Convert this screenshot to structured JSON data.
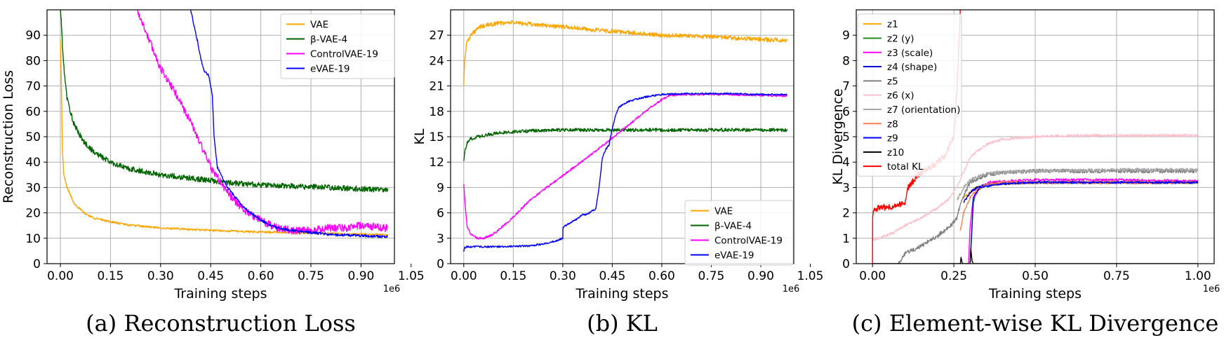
{
  "chart_data": [
    {
      "type": "line",
      "caption": "(a) Reconstruction Loss",
      "xlabel": "Training steps",
      "ylabel": "Reconstruction Loss",
      "x_offset_label": "1e6",
      "xlim": [
        -0.04,
        1.0
      ],
      "ylim": [
        0,
        100
      ],
      "xticks": [
        0.0,
        0.15,
        0.3,
        0.45,
        0.6,
        0.75,
        0.9,
        1.05
      ],
      "xtick_labels": [
        "0.00",
        "0.15",
        "0.30",
        "0.45",
        "0.60",
        "0.75",
        "0.90",
        "1.05"
      ],
      "yticks": [
        0,
        10,
        20,
        30,
        40,
        50,
        60,
        70,
        80,
        90
      ],
      "ytick_labels": [
        "0",
        "10",
        "20",
        "30",
        "40",
        "50",
        "60",
        "70",
        "80",
        "90"
      ],
      "grid": true,
      "legend_position": "top-right",
      "series": [
        {
          "name": "VAE",
          "color": "#ffa500",
          "noise": 0.4,
          "x": [
            0,
            0.003,
            0.006,
            0.01,
            0.02,
            0.04,
            0.07,
            0.1,
            0.15,
            0.2,
            0.3,
            0.4,
            0.5,
            0.6,
            0.7,
            0.8,
            0.9,
            0.98
          ],
          "y": [
            88,
            70,
            45,
            35,
            30,
            24,
            20,
            18,
            16.5,
            15.3,
            14,
            13.4,
            12.9,
            12.5,
            12.2,
            11.9,
            11.6,
            11.4
          ]
        },
        {
          "name": "β-VAE-4",
          "label": "β-VAE-4",
          "color": "#006400",
          "noise": 1.1,
          "x": [
            0,
            0.003,
            0.006,
            0.01,
            0.02,
            0.04,
            0.07,
            0.1,
            0.15,
            0.2,
            0.3,
            0.4,
            0.5,
            0.6,
            0.7,
            0.8,
            0.9,
            0.98
          ],
          "y": [
            100,
            95,
            86,
            78,
            65,
            55,
            48,
            44,
            40,
            37.5,
            35,
            33.5,
            32,
            31,
            30.5,
            30,
            29.5,
            29
          ]
        },
        {
          "name": "ControlVAE-19",
          "color": "#ff00ff",
          "noise": 1.5,
          "x": [
            0.23,
            0.26,
            0.3,
            0.35,
            0.4,
            0.45,
            0.5,
            0.55,
            0.6,
            0.65,
            0.7,
            0.75,
            0.8,
            0.85,
            0.9,
            0.95,
            0.98
          ],
          "y": [
            100,
            90,
            77,
            66,
            53,
            38,
            28,
            21,
            17,
            14,
            13,
            13,
            14,
            14,
            15,
            14.5,
            14
          ]
        },
        {
          "name": "eVAE-19",
          "color": "#0000ff",
          "noise": 0.5,
          "x": [
            0.39,
            0.41,
            0.42,
            0.43,
            0.445,
            0.455,
            0.46,
            0.47,
            0.5,
            0.55,
            0.6,
            0.65,
            0.7,
            0.75,
            0.8,
            0.9,
            0.98
          ],
          "y": [
            100,
            88,
            81,
            76,
            74,
            66,
            50,
            38,
            30,
            22,
            17,
            14,
            13,
            12.3,
            11.5,
            11,
            10.6
          ]
        }
      ]
    },
    {
      "type": "line",
      "caption": "(b) KL",
      "xlabel": "Training steps",
      "ylabel": "KL",
      "x_offset_label": "1e6",
      "xlim": [
        -0.04,
        1.0
      ],
      "ylim": [
        0,
        30
      ],
      "xticks": [
        0.0,
        0.15,
        0.3,
        0.45,
        0.6,
        0.75,
        0.9,
        1.05
      ],
      "xtick_labels": [
        "0.00",
        "0.15",
        "0.30",
        "0.45",
        "0.60",
        "0.75",
        "0.90",
        "1.05"
      ],
      "yticks": [
        0,
        3,
        6,
        9,
        12,
        15,
        18,
        21,
        24,
        27
      ],
      "ytick_labels": [
        "0",
        "3",
        "6",
        "9",
        "12",
        "15",
        "18",
        "21",
        "24",
        "27"
      ],
      "grid": true,
      "legend_position": "bottom-right",
      "series": [
        {
          "name": "VAE",
          "color": "#ffa500",
          "noise": 0.25,
          "x": [
            0,
            0.003,
            0.008,
            0.02,
            0.05,
            0.1,
            0.15,
            0.2,
            0.3,
            0.4,
            0.5,
            0.6,
            0.7,
            0.8,
            0.9,
            0.98
          ],
          "y": [
            21.3,
            24,
            26,
            27,
            28,
            28.4,
            28.5,
            28.3,
            28,
            27.6,
            27.3,
            27,
            26.9,
            26.7,
            26.5,
            26.4
          ]
        },
        {
          "name": "β-VAE-4",
          "label": "β-VAE-4",
          "color": "#006400",
          "noise": 0.2,
          "x": [
            0,
            0.003,
            0.01,
            0.02,
            0.04,
            0.08,
            0.12,
            0.2,
            0.3,
            0.45,
            0.6,
            0.75,
            0.9,
            0.98
          ],
          "y": [
            12.3,
            13.2,
            14.2,
            14.7,
            15,
            15.3,
            15.5,
            15.7,
            15.8,
            15.8,
            15.8,
            15.8,
            15.8,
            15.8
          ]
        },
        {
          "name": "ControlVAE-19",
          "color": "#ff00ff",
          "noise": 0.12,
          "x": [
            0,
            0.004,
            0.01,
            0.02,
            0.04,
            0.06,
            0.08,
            0.1,
            0.15,
            0.2,
            0.3,
            0.4,
            0.5,
            0.55,
            0.6,
            0.62,
            0.65,
            0.7,
            0.8,
            0.9,
            0.98
          ],
          "y": [
            9.5,
            7,
            4.5,
            3.5,
            3.0,
            3.0,
            3.3,
            3.8,
            5.5,
            7.5,
            10.4,
            13.3,
            16.4,
            18,
            19.4,
            19.8,
            20,
            20,
            20,
            19.9,
            19.8
          ]
        },
        {
          "name": "eVAE-19",
          "color": "#0000ff",
          "noise": 0.1,
          "x": [
            0,
            0.003,
            0.01,
            0.05,
            0.1,
            0.2,
            0.25,
            0.28,
            0.3,
            0.3005,
            0.32,
            0.34,
            0.36,
            0.37,
            0.38,
            0.4,
            0.41,
            0.42,
            0.43,
            0.44,
            0.45,
            0.46,
            0.47,
            0.5,
            0.55,
            0.6,
            0.7,
            0.8,
            0.9,
            0.98
          ],
          "y": [
            1.5,
            1.9,
            2.0,
            2.0,
            2.0,
            2.1,
            2.4,
            2.7,
            3.0,
            4.3,
            4.8,
            5.2,
            5.8,
            5.8,
            6.0,
            6.5,
            9,
            12.5,
            13.5,
            14,
            16,
            17.5,
            18.5,
            19.2,
            19.7,
            20,
            20.1,
            20.1,
            20,
            20
          ]
        }
      ]
    },
    {
      "type": "line",
      "caption": "(c) Element-wise KL Divergence",
      "xlabel": "Training steps",
      "ylabel": "KL Divergence",
      "x_offset_label": "1e6",
      "xlim": [
        -0.05,
        1.05
      ],
      "ylim": [
        0,
        10
      ],
      "xticks": [
        0.0,
        0.25,
        0.5,
        0.75,
        1.0
      ],
      "xtick_labels": [
        "0.00",
        "0.25",
        "0.50",
        "0.75",
        "1.00"
      ],
      "yticks": [
        0,
        1,
        2,
        3,
        4,
        5,
        6,
        7,
        8,
        9
      ],
      "ytick_labels": [
        "0",
        "1",
        "2",
        "3",
        "4",
        "5",
        "6",
        "7",
        "8",
        "9"
      ],
      "grid": true,
      "legend_position": "top-left",
      "series": [
        {
          "name": "z1",
          "color": "#ffa500",
          "noise": 0.05,
          "x": [
            0.28,
            0.3,
            0.32,
            0.35,
            0.4,
            0.5,
            0.6,
            0.75,
            0.9,
            1.0
          ],
          "y": [
            2.6,
            2.8,
            3.0,
            3.1,
            3.15,
            3.2,
            3.2,
            3.2,
            3.2,
            3.2
          ]
        },
        {
          "name": "z2 (y)",
          "color": "#228b22",
          "noise": 0.04,
          "x": [
            0.3,
            0.31,
            0.32,
            0.35,
            0.4,
            0.5,
            0.75,
            1.0
          ],
          "y": [
            0.0,
            2.4,
            2.9,
            3.1,
            3.2,
            3.2,
            3.2,
            3.2
          ]
        },
        {
          "name": "z3 (scale)",
          "color": "#ff00ff",
          "noise": 0.05,
          "x": [
            0.295,
            0.3,
            0.31,
            0.33,
            0.36,
            0.4,
            0.5,
            0.75,
            1.0
          ],
          "y": [
            0.0,
            1.5,
            2.6,
            3.0,
            3.2,
            3.25,
            3.3,
            3.3,
            3.25
          ]
        },
        {
          "name": "z4 (shape)",
          "color": "#0000cd",
          "noise": 0.05,
          "x": [
            0.28,
            0.3,
            0.32,
            0.35,
            0.4,
            0.5,
            0.75,
            1.0
          ],
          "y": [
            2.4,
            2.8,
            3.0,
            3.1,
            3.15,
            3.2,
            3.2,
            3.2
          ]
        },
        {
          "name": "z5",
          "color": "#808080",
          "noise": 0.08,
          "x": [
            0.08,
            0.1,
            0.15,
            0.2,
            0.24,
            0.26,
            0.27,
            0.3,
            0.35,
            0.4,
            0.5,
            0.6,
            0.75,
            0.9,
            1.0
          ],
          "y": [
            0.0,
            0.4,
            0.7,
            1.1,
            1.5,
            1.8,
            2.4,
            3.2,
            3.5,
            3.6,
            3.65,
            3.65,
            3.65,
            3.65,
            3.65
          ]
        },
        {
          "name": "z6 (x)",
          "color": "#ffc0cb",
          "noise": 0.05,
          "x": [
            0,
            0.02,
            0.06,
            0.1,
            0.15,
            0.2,
            0.24,
            0.27,
            0.3,
            0.35,
            0.4,
            0.5,
            0.6,
            0.75,
            0.9,
            1.0
          ],
          "y": [
            0.95,
            1.0,
            1.2,
            1.5,
            1.8,
            2.2,
            2.6,
            3.3,
            4.2,
            4.7,
            4.9,
            5.0,
            5.05,
            5.05,
            5.05,
            5.05
          ]
        },
        {
          "name": "z7 (orientation)",
          "color": "#a9a9a9",
          "noise": 0.06,
          "x": [
            0.26,
            0.28,
            0.3,
            0.35,
            0.4,
            0.5,
            0.75,
            1.0
          ],
          "y": [
            2.5,
            3.0,
            3.3,
            3.55,
            3.6,
            3.65,
            3.7,
            3.7
          ]
        },
        {
          "name": "z8",
          "color": "#ff7f50",
          "noise": 0.06,
          "x": [
            0.27,
            0.28,
            0.3,
            0.32,
            0.35,
            0.4,
            0.5,
            0.75,
            1.0
          ],
          "y": [
            1.3,
            2.0,
            2.6,
            2.9,
            3.1,
            3.2,
            3.2,
            3.2,
            3.2
          ]
        },
        {
          "name": "z9",
          "color": "#0000ff",
          "noise": 0.03,
          "x": [
            0.3,
            0.31,
            0.33,
            0.4,
            0.5,
            0.75,
            1.0
          ],
          "y": [
            0.0,
            2.6,
            3.0,
            3.15,
            3.2,
            3.2,
            3.2
          ]
        },
        {
          "name": "z10",
          "color": "#000000",
          "noise": 0,
          "x": [
            0.0,
            0.27,
            0.272,
            0.276,
            0.28,
            0.3,
            0.302,
            0.306,
            0.31,
            1.0
          ],
          "y": [
            0.0,
            0.0,
            0.25,
            0.0,
            0.0,
            0.0,
            0.6,
            0.1,
            0.0,
            0.0
          ]
        },
        {
          "name": "total KL",
          "color": "#ff0000",
          "noise": 0.12,
          "x": [
            0,
            0.0005,
            0.003,
            0.02,
            0.06,
            0.1,
            0.11,
            0.14,
            0.18,
            0.22,
            0.25,
            0.26,
            0.27,
            0.272
          ],
          "y": [
            0.0,
            1.9,
            2.1,
            2.2,
            2.25,
            2.4,
            3.0,
            3.5,
            3.8,
            4.2,
            5.0,
            7.0,
            10.0,
            10.0
          ]
        }
      ]
    }
  ]
}
